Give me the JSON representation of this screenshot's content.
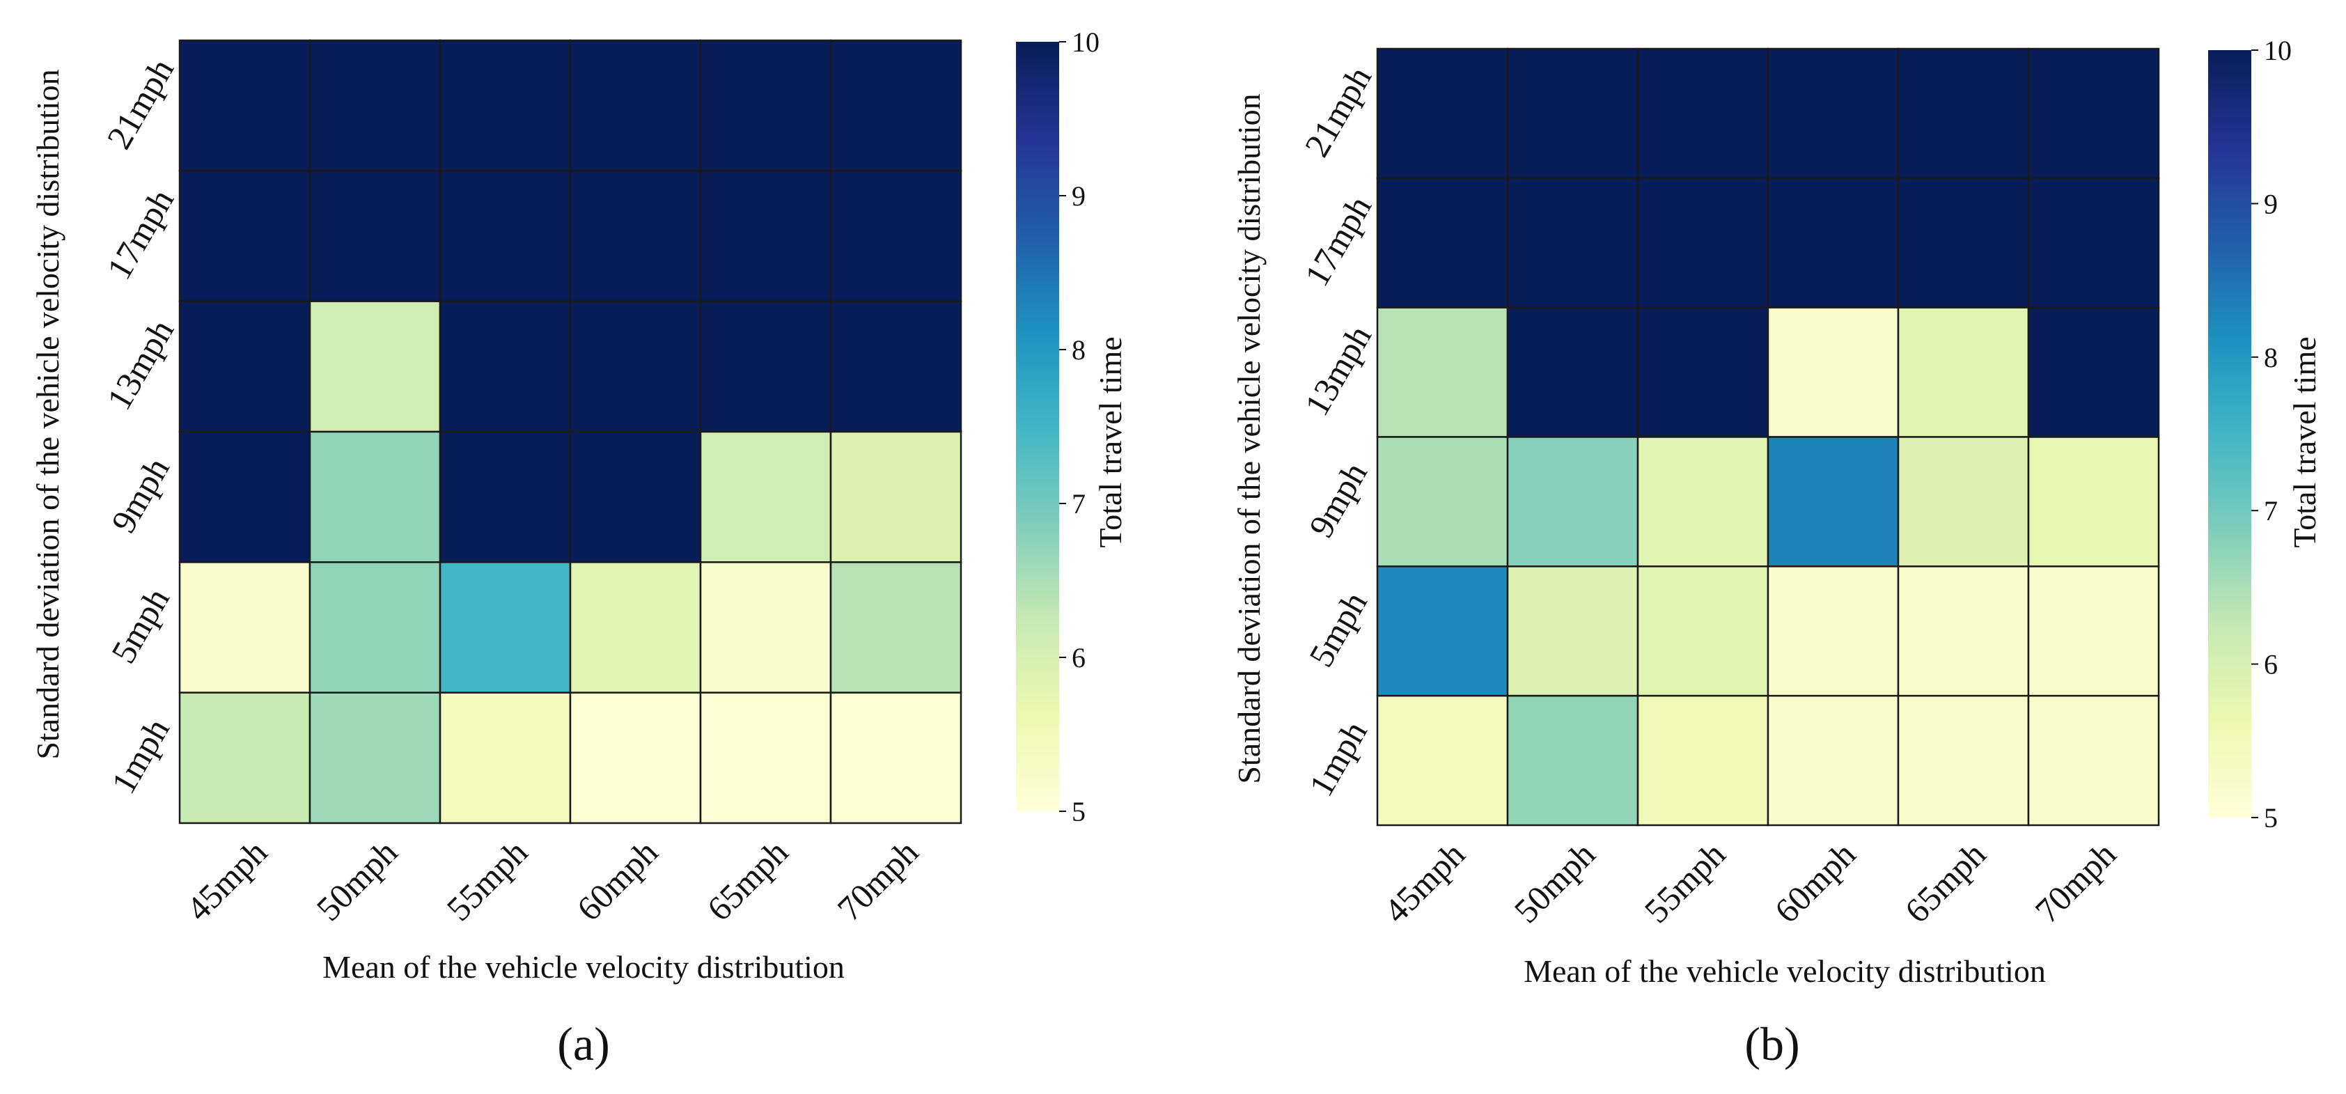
{
  "chart_data": [
    {
      "type": "heatmap",
      "panel_label": "(a)",
      "xlabel": "Mean of the vehicle velocity distribution",
      "ylabel": "Standard deviation of the vehicle velocity distribution",
      "x_categories": [
        "45mph",
        "50mph",
        "55mph",
        "60mph",
        "65mph",
        "70mph"
      ],
      "y_categories": [
        "21mph",
        "17mph",
        "13mph",
        "9mph",
        "5mph",
        "1mph"
      ],
      "values": [
        [
          10,
          10,
          10,
          10,
          10,
          10
        ],
        [
          10,
          10,
          10,
          10,
          10,
          10
        ],
        [
          10,
          6.1,
          10,
          10,
          10,
          10
        ],
        [
          10,
          6.7,
          10,
          10,
          6.1,
          5.9
        ],
        [
          5.2,
          6.7,
          7.5,
          5.8,
          5.2,
          6.4
        ],
        [
          6.2,
          6.6,
          5.4,
          5.1,
          5.1,
          5.1
        ]
      ],
      "colorbar": {
        "label": "Total travel time",
        "range": [
          5,
          10
        ],
        "ticks": [
          "5",
          "6",
          "7",
          "8",
          "9",
          "10"
        ]
      }
    },
    {
      "type": "heatmap",
      "panel_label": "(b)",
      "xlabel": "Mean of the vehicle velocity distribution",
      "ylabel": "Standard deviation of the vehicle velocity distribution",
      "x_categories": [
        "45mph",
        "50mph",
        "55mph",
        "60mph",
        "65mph",
        "70mph"
      ],
      "y_categories": [
        "21mph",
        "17mph",
        "13mph",
        "9mph",
        "5mph",
        "1mph"
      ],
      "values": [
        [
          10,
          10,
          10,
          10,
          10,
          10
        ],
        [
          10,
          10,
          10,
          10,
          10,
          10
        ],
        [
          6.4,
          10,
          10,
          5.2,
          5.8,
          10
        ],
        [
          6.5,
          6.8,
          5.8,
          8.3,
          5.9,
          5.7
        ],
        [
          8.2,
          5.9,
          5.8,
          5.2,
          5.2,
          5.2
        ],
        [
          5.4,
          6.7,
          5.5,
          5.2,
          5.2,
          5.2
        ]
      ],
      "colorbar": {
        "label": "Total travel time",
        "range": [
          5,
          10
        ],
        "ticks": [
          "5",
          "6",
          "7",
          "8",
          "9",
          "10"
        ]
      }
    }
  ]
}
